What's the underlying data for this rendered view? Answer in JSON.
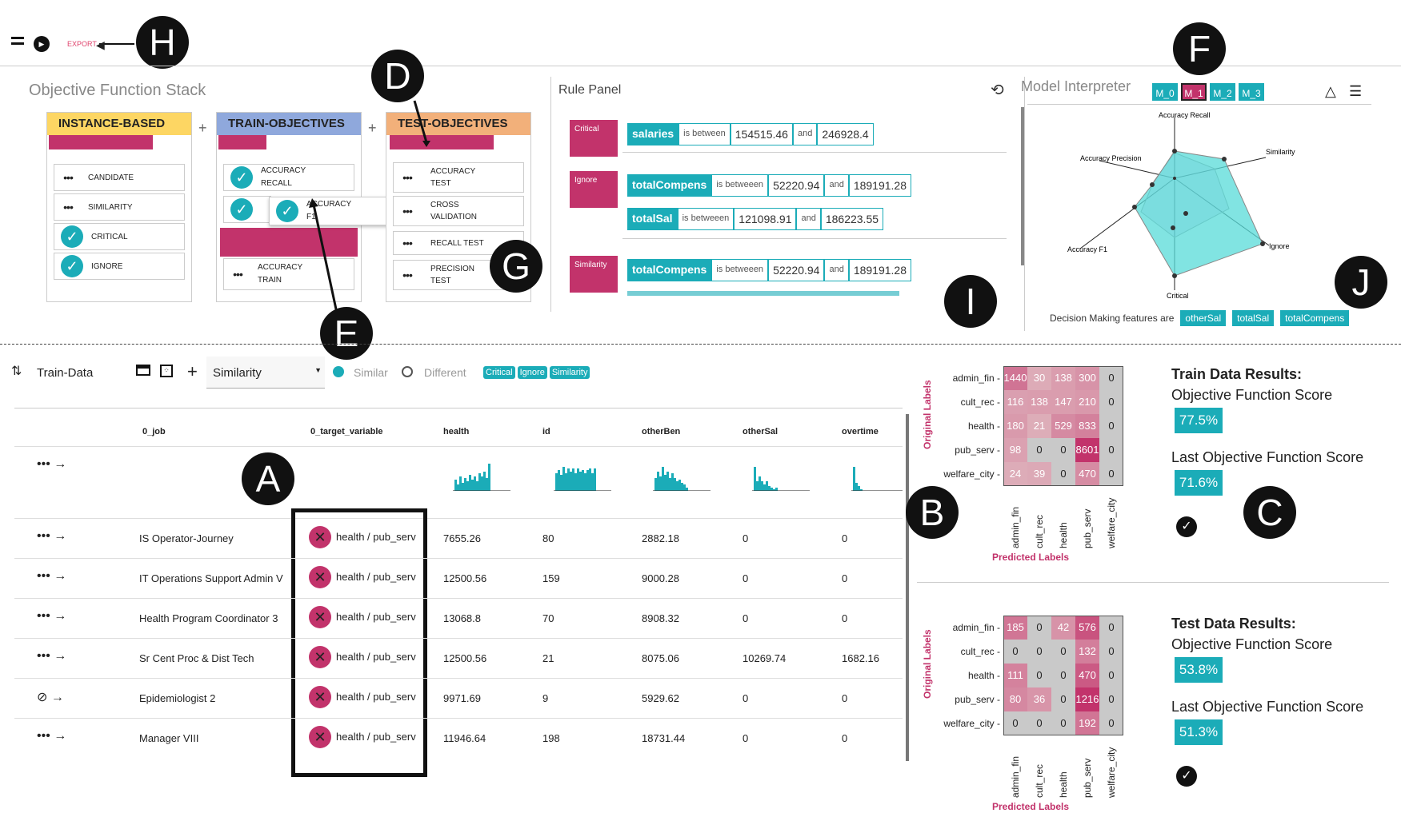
{
  "toolbar": {
    "export_label": "EXPORT"
  },
  "callouts": {
    "a": "A",
    "b": "B",
    "c": "C",
    "d": "D",
    "e": "E",
    "f": "F",
    "g": "G",
    "h": "H",
    "i": "I",
    "j": "J"
  },
  "objective_stack": {
    "title": "Objective Function Stack",
    "columns": [
      {
        "header": "INSTANCE-BASED",
        "color": "#fdd663",
        "items": [
          {
            "label": "CANDIDATE",
            "checked": false
          },
          {
            "label": "SIMILARITY",
            "checked": false
          },
          {
            "label": "CRITICAL",
            "checked": true
          },
          {
            "label": "IGNORE",
            "checked": true
          }
        ]
      },
      {
        "header": "TRAIN-OBJECTIVES",
        "color": "#8fa8dc",
        "items": [
          {
            "label": "ACCURACY RECALL",
            "checked": true
          },
          {
            "label": "ACCURACY F1",
            "checked": true
          },
          {
            "label": "ACCURACY TRAIN",
            "checked": false
          }
        ]
      },
      {
        "header": "TEST-OBJECTIVES",
        "color": "#f2b07a",
        "items": [
          {
            "label": "ACCURACY TEST",
            "checked": false
          },
          {
            "label": "CROSS VALIDATION",
            "checked": false
          },
          {
            "label": "RECALL TEST",
            "checked": false
          },
          {
            "label": "PRECISION TEST",
            "checked": false
          }
        ]
      }
    ],
    "plus": "+"
  },
  "rule_panel": {
    "title": "Rule Panel",
    "rules": [
      {
        "tag": "Critical",
        "rows": [
          {
            "feature": "salaries",
            "op": "is between",
            "low": "154515.46",
            "and": "and",
            "high": "246928.4"
          }
        ]
      },
      {
        "tag": "Ignore",
        "rows": [
          {
            "feature": "totalCompens",
            "op": "is betweeen",
            "low": "52220.94",
            "and": "and",
            "high": "189191.28"
          },
          {
            "feature": "totalSal",
            "op": "is betweeen",
            "low": "121098.91",
            "and": "and",
            "high": "186223.55"
          }
        ]
      },
      {
        "tag": "Similarity",
        "rows": [
          {
            "feature": "totalCompens",
            "op": "is betweeen",
            "low": "52220.94",
            "and": "and",
            "high": "189191.28"
          }
        ]
      }
    ]
  },
  "model_interpreter": {
    "title": "Model Interpreter",
    "models": [
      "M_0",
      "M_1",
      "M_2",
      "M_3"
    ],
    "selected": "M_1",
    "radar_axes": [
      "Accuracy Recall",
      "Similarity",
      "Ignore",
      "Critical",
      "Accuracy F1",
      "Accuracy Precision"
    ],
    "decision_label": "Decision Making features are",
    "decision_features": [
      "otherSal",
      "totalSal",
      "totalCompens"
    ]
  },
  "data_table": {
    "dataset_label": "Train-Data",
    "metric_select": "Similarity",
    "radio_similar": "Similar",
    "radio_different": "Different",
    "filter_tags": [
      "Critical",
      "Ignore",
      "Similarity"
    ],
    "columns": [
      "0_job",
      "0_target_variable",
      "health",
      "id",
      "otherBen",
      "otherSal",
      "overtime"
    ],
    "rows": [
      {
        "job": "IS Operator-Journey",
        "target": "health / pub_serv",
        "health": "7655.26",
        "id": "80",
        "otherBen": "2882.18",
        "otherSal": "0",
        "overtime": "0",
        "icon": "dots"
      },
      {
        "job": "IT Operations Support Admin V",
        "target": "health / pub_serv",
        "health": "12500.56",
        "id": "159",
        "otherBen": "9000.28",
        "otherSal": "0",
        "overtime": "0",
        "icon": "dots"
      },
      {
        "job": "Health Program Coordinator 3",
        "target": "health / pub_serv",
        "health": "13068.8",
        "id": "70",
        "otherBen": "8908.32",
        "otherSal": "0",
        "overtime": "0",
        "icon": "dots"
      },
      {
        "job": "Sr Cent Proc & Dist Tech",
        "target": "health / pub_serv",
        "health": "12500.56",
        "id": "21",
        "otherBen": "8075.06",
        "otherSal": "10269.74",
        "overtime": "1682.16",
        "icon": "dots"
      },
      {
        "job": "Epidemiologist 2",
        "target": "health / pub_serv",
        "health": "9971.69",
        "id": "9",
        "otherBen": "5929.62",
        "otherSal": "0",
        "overtime": "0",
        "icon": "check"
      },
      {
        "job": "Manager VIII",
        "target": "health / pub_serv",
        "health": "11946.64",
        "id": "198",
        "otherBen": "18731.44",
        "otherSal": "0",
        "overtime": "0",
        "icon": "dots"
      }
    ]
  },
  "confusion": {
    "labels": [
      "admin_fin",
      "cult_rec",
      "health",
      "pub_serv",
      "welfare_city"
    ],
    "ylabel": "Original Labels",
    "xlabel": "Predicted Labels",
    "train": [
      [
        1440,
        30,
        138,
        300,
        0
      ],
      [
        116,
        138,
        147,
        210,
        0
      ],
      [
        180,
        21,
        529,
        833,
        0
      ],
      [
        98,
        0,
        0,
        8601,
        0
      ],
      [
        24,
        39,
        0,
        470,
        0
      ]
    ],
    "test": [
      [
        185,
        0,
        42,
        576,
        0
      ],
      [
        0,
        0,
        0,
        132,
        0
      ],
      [
        111,
        0,
        0,
        470,
        0
      ],
      [
        80,
        36,
        0,
        1216,
        0
      ],
      [
        0,
        0,
        0,
        192,
        0
      ]
    ]
  },
  "results": {
    "train": {
      "title": "Train Data Results:",
      "score_label": "Objective Function Score",
      "score": "77.5%",
      "last_label": "Last Objective Function Score",
      "last": "71.6%"
    },
    "test": {
      "title": "Test Data Results:",
      "score_label": "Objective Function Score",
      "score": "53.8%",
      "last_label": "Last Objective Function Score",
      "last": "51.3%"
    }
  }
}
